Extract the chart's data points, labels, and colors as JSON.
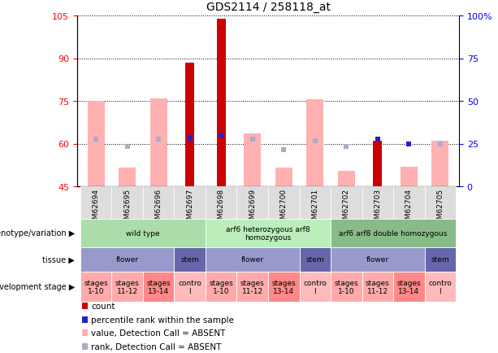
{
  "title": "GDS2114 / 258118_at",
  "samples": [
    "GSM62694",
    "GSM62695",
    "GSM62696",
    "GSM62697",
    "GSM62698",
    "GSM62699",
    "GSM62700",
    "GSM62701",
    "GSM62702",
    "GSM62703",
    "GSM62704",
    "GSM62705"
  ],
  "red_bars": [
    null,
    null,
    null,
    88.5,
    104.0,
    null,
    null,
    null,
    null,
    61.0,
    null,
    null
  ],
  "pink_bars": [
    75.0,
    51.5,
    76.0,
    null,
    null,
    63.5,
    51.5,
    75.5,
    50.5,
    null,
    52.0,
    61.0
  ],
  "blue_dark": [
    null,
    null,
    null,
    62.0,
    63.0,
    null,
    null,
    null,
    null,
    61.5,
    60.0,
    null
  ],
  "blue_light": [
    61.5,
    59.0,
    61.5,
    null,
    null,
    61.5,
    58.0,
    61.0,
    59.0,
    null,
    null,
    60.0
  ],
  "ymin": 45,
  "ymax": 105,
  "yticks_left": [
    45,
    60,
    75,
    90,
    105
  ],
  "yticks_right_pct": [
    0,
    25,
    50,
    75,
    100
  ],
  "yright_labels": [
    "0",
    "25",
    "50",
    "75",
    "100%"
  ],
  "color_red": "#CC0000",
  "color_pink": "#FFB0B0",
  "color_blue_dark": "#2222CC",
  "color_blue_light": "#AAAACC",
  "genotype_segments": [
    {
      "label": "wild type",
      "start": 0,
      "end": 3,
      "color": "#AADDAA"
    },
    {
      "label": "arf6 heterozygous arf8\nhomozygous",
      "start": 4,
      "end": 7,
      "color": "#BBEEBB"
    },
    {
      "label": "arf6 arf8 double homozygous",
      "start": 8,
      "end": 11,
      "color": "#88BB88"
    }
  ],
  "tissue_segments": [
    {
      "label": "flower",
      "start": 0,
      "end": 2,
      "color": "#9999CC"
    },
    {
      "label": "stem",
      "start": 3,
      "end": 3,
      "color": "#6666AA"
    },
    {
      "label": "flower",
      "start": 4,
      "end": 6,
      "color": "#9999CC"
    },
    {
      "label": "stem",
      "start": 7,
      "end": 7,
      "color": "#6666AA"
    },
    {
      "label": "flower",
      "start": 8,
      "end": 10,
      "color": "#9999CC"
    },
    {
      "label": "stem",
      "start": 11,
      "end": 11,
      "color": "#6666AA"
    }
  ],
  "dev_segments": [
    {
      "label": "stages\n1-10",
      "start": 0,
      "end": 0,
      "color": "#FFAAAA"
    },
    {
      "label": "stages\n11-12",
      "start": 1,
      "end": 1,
      "color": "#FFAAAA"
    },
    {
      "label": "stages\n13-14",
      "start": 2,
      "end": 2,
      "color": "#FF8888"
    },
    {
      "label": "contro\nl",
      "start": 3,
      "end": 3,
      "color": "#FFBBBB"
    },
    {
      "label": "stages\n1-10",
      "start": 4,
      "end": 4,
      "color": "#FFAAAA"
    },
    {
      "label": "stages\n11-12",
      "start": 5,
      "end": 5,
      "color": "#FFAAAA"
    },
    {
      "label": "stages\n13-14",
      "start": 6,
      "end": 6,
      "color": "#FF8888"
    },
    {
      "label": "contro\nl",
      "start": 7,
      "end": 7,
      "color": "#FFBBBB"
    },
    {
      "label": "stages\n1-10",
      "start": 8,
      "end": 8,
      "color": "#FFAAAA"
    },
    {
      "label": "stages\n11-12",
      "start": 9,
      "end": 9,
      "color": "#FFAAAA"
    },
    {
      "label": "stages\n13-14",
      "start": 10,
      "end": 10,
      "color": "#FF8888"
    },
    {
      "label": "contro\nl",
      "start": 11,
      "end": 11,
      "color": "#FFBBBB"
    }
  ],
  "legend_colors": [
    "#CC0000",
    "#2222CC",
    "#FFB0B0",
    "#AAAACC"
  ],
  "legend_labels": [
    "count",
    "percentile rank within the sample",
    "value, Detection Call = ABSENT",
    "rank, Detection Call = ABSENT"
  ],
  "bg_color": "#EEEEEE"
}
